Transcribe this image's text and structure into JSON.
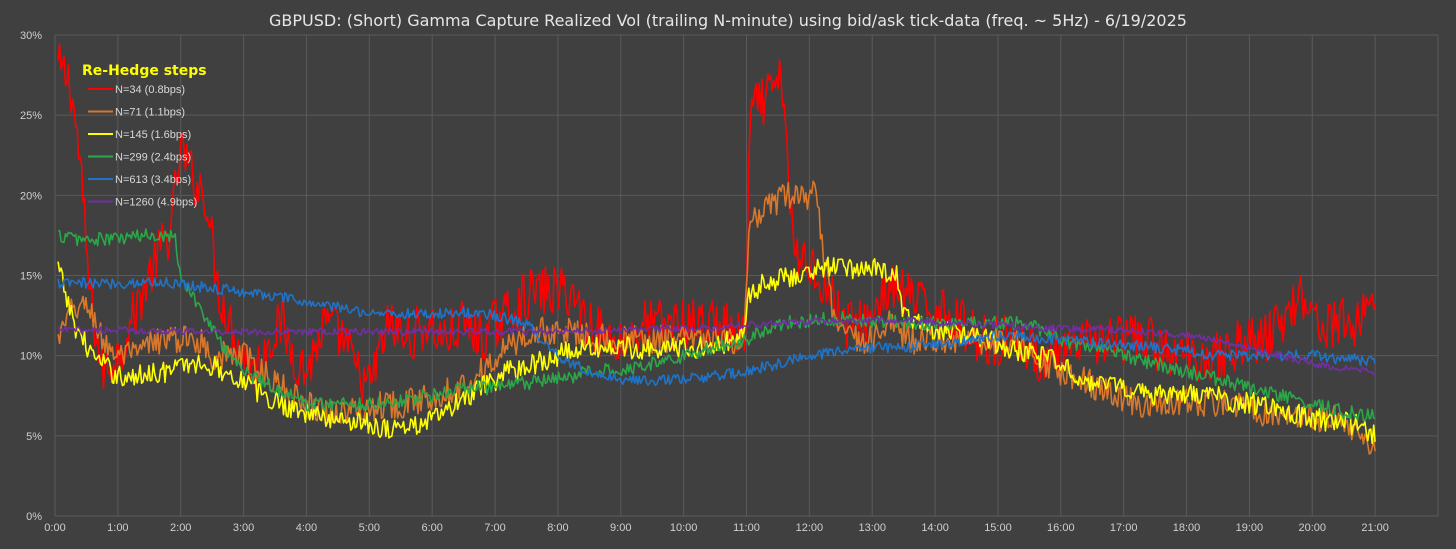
{
  "chart_data": {
    "type": "line",
    "title": "GBPUSD: (Short) Gamma Capture Realized Vol (trailing N-minute) using bid/ask tick-data (freq. ~ 5Hz) - 6/19/2025",
    "xlabel": "",
    "ylabel": "",
    "x_range_hours": [
      0,
      22
    ],
    "ylim": [
      0,
      30
    ],
    "grid": true,
    "legend_position": "top-left",
    "legend_title": "Re-Hedge steps",
    "legend_title_color": "#ffff00",
    "background_color": "#404040",
    "grid_color": "#5a5a5a",
    "x_tick_labels": [
      "0:00",
      "1:00",
      "2:00",
      "3:00",
      "4:00",
      "5:00",
      "6:00",
      "7:00",
      "8:00",
      "9:00",
      "10:00",
      "11:00",
      "12:00",
      "13:00",
      "14:00",
      "15:00",
      "16:00",
      "17:00",
      "18:00",
      "19:00",
      "20:00",
      "21:00"
    ],
    "y_ticks": [
      0,
      5,
      10,
      15,
      20,
      25,
      30
    ],
    "y_tick_labels": [
      "0%",
      "5%",
      "10%",
      "15%",
      "20%",
      "25%",
      "30%"
    ],
    "series": [
      {
        "name": "N=34 (0.8bps)",
        "color": "#ff0000",
        "noise": 1.6,
        "x": [
          0.05,
          0.25,
          0.4,
          0.55,
          0.75,
          1.0,
          1.3,
          1.6,
          1.85,
          2.0,
          2.2,
          2.4,
          2.6,
          2.8,
          3.0,
          3.2,
          3.4,
          3.6,
          3.8,
          4.0,
          4.3,
          4.6,
          4.8,
          5.0,
          5.3,
          5.6,
          5.9,
          6.2,
          6.5,
          6.8,
          7.0,
          7.3,
          7.6,
          7.9,
          8.2,
          8.5,
          8.8,
          9.1,
          9.4,
          9.7,
          10.0,
          10.3,
          10.6,
          10.9,
          11.0,
          11.05,
          11.3,
          11.55,
          11.6,
          11.75,
          12.0,
          12.3,
          12.6,
          12.9,
          13.2,
          13.5,
          13.8,
          14.1,
          14.4,
          14.7,
          15.0,
          15.3,
          15.6,
          15.9,
          16.2,
          16.5,
          16.8,
          17.1,
          17.4,
          17.7,
          18.0,
          18.3,
          18.6,
          18.9,
          19.2,
          19.5,
          19.8,
          20.1,
          20.4,
          20.7,
          21.0
        ],
        "y": [
          28,
          27,
          22,
          14,
          9,
          10,
          13,
          16,
          18,
          23,
          21,
          20,
          14,
          12,
          10,
          9,
          11,
          12,
          10,
          9,
          12,
          11,
          9,
          8,
          12,
          11,
          12,
          11,
          12,
          11,
          12,
          13,
          14,
          14,
          14,
          12,
          11,
          11,
          12,
          12,
          12,
          12,
          12,
          11,
          12,
          25,
          26,
          27,
          26,
          16,
          16,
          14,
          12,
          12,
          14,
          14,
          13,
          13,
          12,
          11,
          11,
          11,
          10,
          10,
          10,
          11,
          11,
          11,
          11,
          10,
          10,
          10,
          10,
          11,
          11,
          12,
          14,
          12,
          12,
          12,
          14
        ]
      },
      {
        "name": "N=71 (1.1bps)",
        "color": "#d9772b",
        "noise": 0.9,
        "x": [
          0.05,
          0.3,
          0.55,
          0.75,
          1.0,
          1.3,
          1.6,
          1.9,
          2.1,
          2.3,
          2.5,
          2.7,
          3.0,
          3.3,
          3.6,
          4.0,
          4.4,
          4.8,
          5.2,
          5.6,
          6.0,
          6.4,
          6.8,
          7.2,
          7.6,
          8.0,
          8.4,
          8.8,
          9.2,
          9.6,
          10.0,
          10.4,
          10.8,
          10.95,
          11.05,
          11.3,
          11.6,
          11.9,
          12.1,
          12.2,
          12.4,
          12.7,
          13.0,
          13.3,
          13.6,
          14.0,
          14.4,
          14.8,
          15.2,
          15.6,
          16.0,
          16.4,
          16.8,
          17.2,
          17.6,
          18.0,
          18.4,
          18.8,
          19.2,
          19.6,
          20.0,
          20.4,
          20.8,
          21.0
        ],
        "y": [
          11,
          13,
          13,
          11,
          10,
          10,
          11,
          11,
          11,
          11,
          10,
          10,
          10,
          9,
          8,
          7,
          6.5,
          6.5,
          7,
          7,
          7.5,
          8,
          9,
          10.5,
          11.5,
          11.5,
          11.5,
          11,
          11,
          11,
          11,
          11,
          11,
          11,
          18,
          19,
          20,
          20,
          20,
          17,
          12,
          11,
          11,
          12,
          11,
          11,
          11,
          11,
          11,
          10,
          9,
          8.5,
          7.5,
          7,
          7,
          7,
          7,
          7,
          6.5,
          6.5,
          6,
          6,
          5,
          4.5
        ]
      },
      {
        "name": "N=145 (1.6bps)",
        "color": "#ffff00",
        "noise": 0.7,
        "x": [
          0.05,
          0.3,
          0.6,
          0.9,
          1.2,
          1.5,
          1.8,
          2.1,
          2.4,
          2.7,
          3.0,
          3.3,
          3.6,
          4.0,
          4.4,
          4.8,
          5.2,
          5.6,
          6.0,
          6.4,
          6.8,
          7.2,
          7.6,
          8.0,
          8.4,
          8.8,
          9.2,
          9.6,
          10.0,
          10.4,
          10.8,
          10.95,
          11.05,
          11.3,
          11.6,
          11.9,
          12.2,
          12.5,
          12.8,
          13.1,
          13.4,
          13.5,
          13.7,
          14.0,
          14.4,
          14.8,
          15.2,
          15.6,
          16.0,
          16.4,
          16.8,
          17.2,
          17.6,
          18.0,
          18.4,
          18.8,
          19.2,
          19.6,
          20.0,
          20.4,
          20.8,
          21.0
        ],
        "y": [
          15.5,
          12,
          10,
          9,
          8.5,
          9,
          9,
          9.5,
          9.5,
          9,
          8.5,
          7.5,
          7,
          6.5,
          6,
          6,
          5.5,
          5.5,
          6,
          7,
          8,
          9,
          9.5,
          10,
          10.5,
          10.5,
          10.5,
          10.5,
          10.5,
          10.5,
          11,
          11,
          14,
          14.5,
          15,
          15,
          15.5,
          15.5,
          15.5,
          15.5,
          15,
          12.5,
          12,
          11.5,
          11.5,
          11,
          10.5,
          10,
          9.5,
          8.5,
          8,
          8,
          7.5,
          7.5,
          7.5,
          7,
          7,
          6.5,
          6,
          6,
          5.5,
          5
        ]
      },
      {
        "name": "N=299 (2.4bps)",
        "color": "#2aa748",
        "noise": 0.45,
        "x": [
          0.05,
          0.5,
          1.0,
          1.5,
          1.9,
          2.0,
          2.3,
          2.6,
          3.0,
          3.5,
          4.0,
          4.5,
          5.0,
          5.5,
          6.0,
          6.5,
          7.0,
          7.5,
          8.0,
          8.5,
          9.0,
          9.5,
          10.0,
          10.5,
          11.0,
          11.5,
          12.0,
          12.5,
          13.0,
          13.5,
          14.0,
          14.5,
          15.0,
          15.5,
          16.0,
          16.5,
          17.0,
          17.5,
          18.0,
          18.5,
          19.0,
          19.5,
          20.0,
          20.5,
          21.0
        ],
        "y": [
          17.5,
          17.2,
          17.3,
          17.5,
          17.6,
          15,
          13,
          11,
          9,
          8,
          7,
          7,
          7,
          7.2,
          7.5,
          8,
          8,
          8.3,
          8.5,
          9,
          9.2,
          9.5,
          10,
          10.5,
          11,
          12,
          12.2,
          12.3,
          12.2,
          12.1,
          12,
          12,
          12,
          12,
          11,
          10.5,
          10,
          9.5,
          9,
          8.5,
          8,
          7.5,
          7,
          6.5,
          6.3
        ]
      },
      {
        "name": "N=613 (3.4bps)",
        "color": "#1f73c8",
        "noise": 0.35,
        "x": [
          0.05,
          0.5,
          1.0,
          1.5,
          2.0,
          2.5,
          3.0,
          3.5,
          4.0,
          4.5,
          5.0,
          5.5,
          6.0,
          6.5,
          7.0,
          7.5,
          8.0,
          8.5,
          9.0,
          9.5,
          10.0,
          10.5,
          11.0,
          11.5,
          12.0,
          12.5,
          13.0,
          13.5,
          14.0,
          14.5,
          15.0,
          15.5,
          16.0,
          16.5,
          17.0,
          17.5,
          18.0,
          18.5,
          19.0,
          19.5,
          20.0,
          20.5,
          21.0
        ],
        "y": [
          14.5,
          14.5,
          14.5,
          14.6,
          14.5,
          14.2,
          14,
          13.7,
          13.3,
          13,
          12.7,
          12.6,
          12.6,
          12.7,
          12.5,
          12,
          10,
          9,
          8.5,
          8.5,
          8.5,
          8.7,
          9,
          9.5,
          10,
          10.3,
          10.5,
          10.5,
          10.7,
          11,
          11.2,
          11.2,
          11,
          10.8,
          10.7,
          10.5,
          10.3,
          10,
          10,
          10,
          10,
          9.8,
          9.7
        ]
      },
      {
        "name": "N=1260 (4.9bps)",
        "color": "#7030a0",
        "noise": 0.22,
        "x": [
          0.05,
          1.0,
          2.0,
          3.0,
          4.0,
          5.0,
          6.0,
          7.0,
          8.0,
          9.0,
          10.0,
          11.0,
          12.0,
          13.0,
          14.0,
          15.0,
          16.0,
          17.0,
          18.0,
          18.5,
          19.0,
          19.5,
          20.0,
          20.5,
          21.0
        ],
        "y": [
          11.6,
          11.6,
          11.5,
          11.5,
          11.5,
          11.5,
          11.5,
          11.5,
          11.5,
          11.6,
          11.7,
          11.9,
          12.1,
          12.2,
          12.1,
          11.9,
          11.7,
          11.6,
          11.3,
          11,
          10.5,
          10,
          9.5,
          9.2,
          9
        ]
      }
    ]
  }
}
